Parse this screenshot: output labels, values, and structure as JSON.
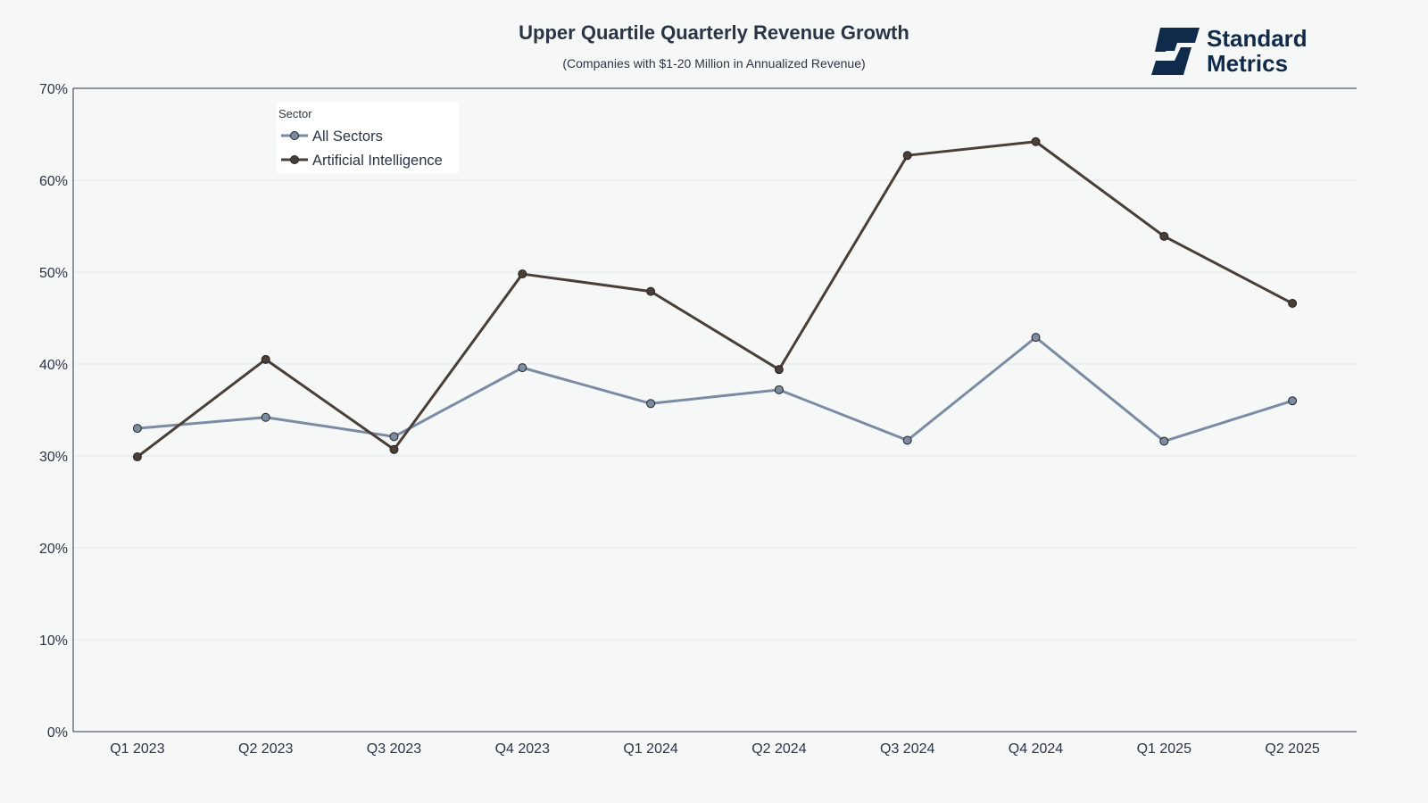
{
  "logo": {
    "line1": "Standard",
    "line2": "Metrics",
    "color": "#0f2a4a"
  },
  "chart_data": {
    "type": "line",
    "title": "Upper Quartile Quarterly Revenue Growth",
    "subtitle": "(Companies with $1-20 Million in Annualized Revenue)",
    "xlabel": "",
    "ylabel": "",
    "categories": [
      "Q1 2023",
      "Q2 2023",
      "Q3 2023",
      "Q4 2023",
      "Q1 2024",
      "Q2 2024",
      "Q3 2024",
      "Q4 2024",
      "Q1 2025",
      "Q2 2025"
    ],
    "ylim": [
      0,
      70
    ],
    "yticks": [
      0,
      10,
      20,
      30,
      40,
      50,
      60,
      70
    ],
    "y_tick_suffix": "%",
    "grid": true,
    "legend": {
      "title": "Sector",
      "position": "top-left"
    },
    "series": [
      {
        "name": "All Sectors",
        "color": "#7b8ba3",
        "values": [
          33.0,
          34.2,
          32.1,
          39.6,
          35.7,
          37.2,
          31.7,
          42.9,
          31.6,
          36.0
        ]
      },
      {
        "name": "Artificial Intelligence",
        "color": "#4a3f37",
        "values": [
          29.9,
          40.5,
          30.7,
          49.8,
          47.9,
          39.4,
          62.7,
          64.2,
          53.9,
          46.6
        ]
      }
    ]
  }
}
